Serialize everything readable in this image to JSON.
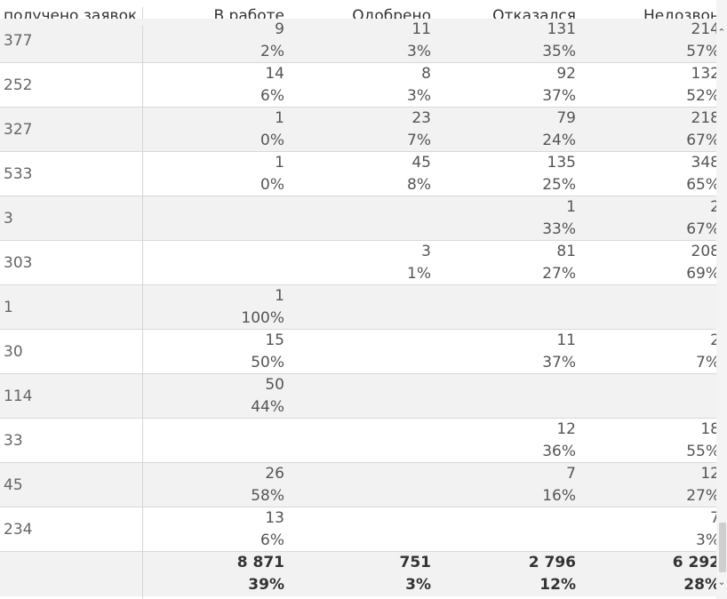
{
  "header": {
    "col0": "получено заявок",
    "col1": "В работе",
    "col2": "Одобрено",
    "col3": "Отказался",
    "col4": "Недозвон"
  },
  "rows": [
    {
      "label": "377",
      "c1": [
        "9",
        "2%"
      ],
      "c2": [
        "11",
        "3%"
      ],
      "c3": [
        "131",
        "35%"
      ],
      "c4": [
        "214",
        "57%"
      ]
    },
    {
      "label": "252",
      "c1": [
        "14",
        "6%"
      ],
      "c2": [
        "8",
        "3%"
      ],
      "c3": [
        "92",
        "37%"
      ],
      "c4": [
        "132",
        "52%"
      ]
    },
    {
      "label": "327",
      "c1": [
        "1",
        "0%"
      ],
      "c2": [
        "23",
        "7%"
      ],
      "c3": [
        "79",
        "24%"
      ],
      "c4": [
        "218",
        "67%"
      ]
    },
    {
      "label": "533",
      "c1": [
        "1",
        "0%"
      ],
      "c2": [
        "45",
        "8%"
      ],
      "c3": [
        "135",
        "25%"
      ],
      "c4": [
        "348",
        "65%"
      ]
    },
    {
      "label": "3",
      "c1": [
        "",
        ""
      ],
      "c2": [
        "",
        ""
      ],
      "c3": [
        "1",
        "33%"
      ],
      "c4": [
        "2",
        "67%"
      ]
    },
    {
      "label": "303",
      "c1": [
        "",
        ""
      ],
      "c2": [
        "3",
        "1%"
      ],
      "c3": [
        "81",
        "27%"
      ],
      "c4": [
        "208",
        "69%"
      ]
    },
    {
      "label": "1",
      "c1": [
        "1",
        "100%"
      ],
      "c2": [
        "",
        ""
      ],
      "c3": [
        "",
        ""
      ],
      "c4": [
        "",
        ""
      ]
    },
    {
      "label": "30",
      "c1": [
        "15",
        "50%"
      ],
      "c2": [
        "",
        ""
      ],
      "c3": [
        "11",
        "37%"
      ],
      "c4": [
        "2",
        "7%"
      ]
    },
    {
      "label": "114",
      "c1": [
        "50",
        "44%"
      ],
      "c2": [
        "",
        ""
      ],
      "c3": [
        "",
        ""
      ],
      "c4": [
        "",
        ""
      ]
    },
    {
      "label": "33",
      "c1": [
        "",
        ""
      ],
      "c2": [
        "",
        ""
      ],
      "c3": [
        "12",
        "36%"
      ],
      "c4": [
        "18",
        "55%"
      ]
    },
    {
      "label": "45",
      "c1": [
        "26",
        "58%"
      ],
      "c2": [
        "",
        ""
      ],
      "c3": [
        "7",
        "16%"
      ],
      "c4": [
        "12",
        "27%"
      ]
    },
    {
      "label": "234",
      "c1": [
        "13",
        "6%"
      ],
      "c2": [
        "",
        ""
      ],
      "c3": [
        "",
        ""
      ],
      "c4": [
        "7",
        "3%"
      ]
    }
  ],
  "totals": {
    "label": "",
    "c1": [
      "8 871",
      "39%"
    ],
    "c2": [
      "751",
      "3%"
    ],
    "c3": [
      "2 796",
      "12%"
    ],
    "c4": [
      "6 292",
      "28%"
    ]
  },
  "scrollbar": {
    "up_glyph": "⌃",
    "down_glyph": "⌄"
  }
}
